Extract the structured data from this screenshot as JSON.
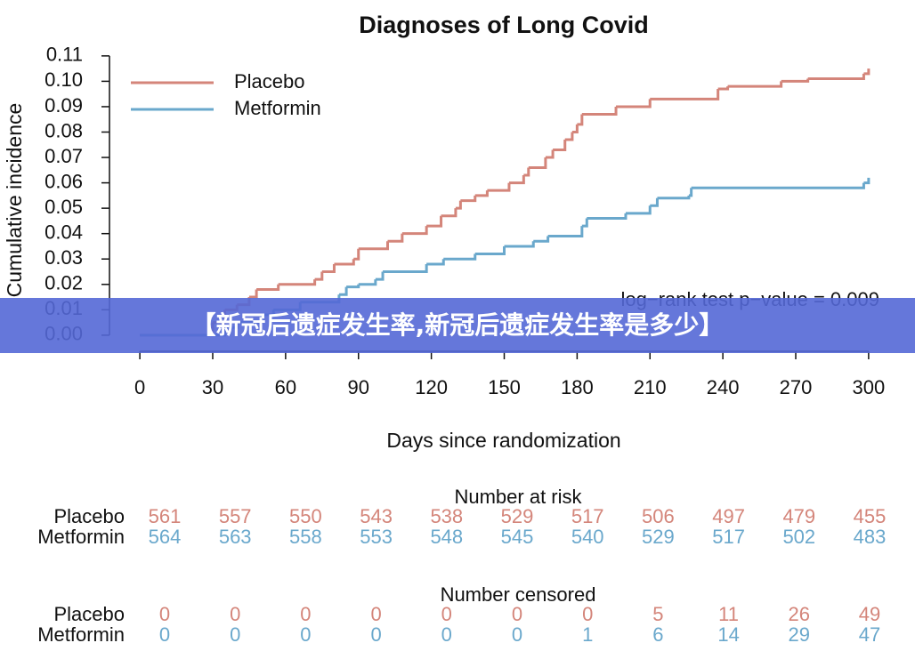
{
  "chart_data": {
    "type": "line",
    "title": "Diagnoses of Long Covid",
    "x_label": "Days since randomization",
    "y_label": "Cumulative incidence",
    "annotation": "log−rank test p−value = 0.009",
    "xlim": [
      -12.5,
      312.5
    ],
    "ylim": [
      -0.0046,
      0.111
    ],
    "xticks": [
      0,
      30,
      60,
      90,
      120,
      150,
      180,
      210,
      240,
      270,
      300
    ],
    "yticks": [
      {
        "value": 0,
        "label": "0.00"
      },
      0.01,
      0.02,
      0.03,
      0.04,
      0.05,
      0.06,
      0.07,
      0.08,
      0.09,
      {
        "value": 0.1,
        "label": "0.10"
      },
      0.11
    ],
    "legend": "top-left",
    "series": [
      {
        "name": "Placebo",
        "color": "#d4857a",
        "x": [
          0,
          30,
          35,
          40,
          45,
          48,
          57,
          72,
          75,
          80,
          88,
          90,
          102,
          108,
          118,
          124,
          130,
          132,
          138,
          143,
          152,
          158,
          160,
          167,
          170,
          175,
          178,
          180,
          182,
          196,
          210,
          238,
          242,
          264,
          275,
          298,
          300
        ],
        "values": [
          0,
          0.005,
          0.01,
          0.012,
          0.015,
          0.018,
          0.02,
          0.022,
          0.025,
          0.028,
          0.03,
          0.034,
          0.037,
          0.04,
          0.043,
          0.047,
          0.05,
          0.053,
          0.055,
          0.057,
          0.06,
          0.063,
          0.066,
          0.07,
          0.073,
          0.077,
          0.08,
          0.083,
          0.087,
          0.09,
          0.093,
          0.097,
          0.098,
          0.1,
          0.101,
          0.103,
          0.105
        ]
      },
      {
        "name": "Metformin",
        "color": "#6aa8cc",
        "x": [
          0,
          35,
          40,
          50,
          55,
          66,
          82,
          85,
          90,
          97,
          100,
          118,
          125,
          138,
          150,
          162,
          168,
          182,
          184,
          200,
          210,
          213,
          226,
          227,
          298,
          300
        ],
        "values": [
          0,
          0.003,
          0.005,
          0.008,
          0.01,
          0.013,
          0.016,
          0.019,
          0.02,
          0.022,
          0.025,
          0.028,
          0.03,
          0.032,
          0.035,
          0.037,
          0.039,
          0.043,
          0.046,
          0.048,
          0.051,
          0.054,
          0.055,
          0.058,
          0.06,
          0.062
        ]
      }
    ],
    "risk_table": {
      "title": "Number at risk",
      "rows": [
        {
          "name": "Placebo",
          "values": [
            561,
            557,
            550,
            543,
            538,
            529,
            517,
            506,
            497,
            479,
            455
          ]
        },
        {
          "name": "Metformin",
          "values": [
            564,
            563,
            558,
            553,
            548,
            545,
            540,
            529,
            517,
            502,
            483
          ]
        }
      ]
    },
    "censored_table": {
      "title": "Number censored",
      "rows": [
        {
          "name": "Placebo",
          "values": [
            0,
            0,
            0,
            0,
            0,
            0,
            0,
            5,
            11,
            26,
            49
          ]
        },
        {
          "name": "Metformin",
          "values": [
            0,
            0,
            0,
            0,
            0,
            0,
            1,
            6,
            14,
            29,
            47
          ]
        }
      ]
    }
  },
  "banner": "【新冠后遗症发生率,新冠后遗症发生率是多少】"
}
